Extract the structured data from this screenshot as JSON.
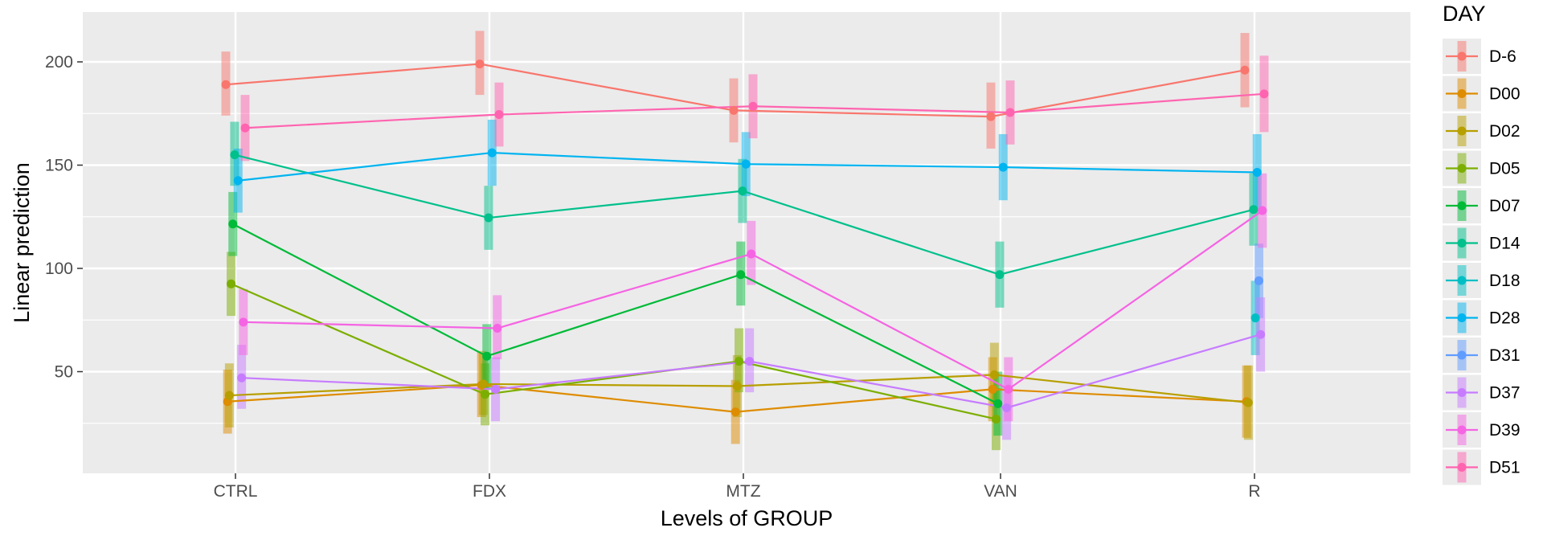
{
  "chart_data": {
    "type": "line",
    "xlabel": "Levels of GROUP",
    "ylabel": "Linear prediction",
    "categories": [
      "CTRL",
      "FDX",
      "MTZ",
      "VAN",
      "R"
    ],
    "yticks": [
      50,
      100,
      150,
      200
    ],
    "ylim": [
      0,
      225
    ],
    "grid": true,
    "legend": {
      "title": "DAY",
      "position": "right"
    },
    "series": [
      {
        "name": "D-6",
        "color": "#F8766D",
        "values": [
          189,
          199,
          176.5,
          173.5,
          196
        ],
        "ci_low": [
          174,
          184,
          161,
          158,
          178
        ],
        "ci_high": [
          205,
          215,
          192,
          190,
          214
        ]
      },
      {
        "name": "D00",
        "color": "#DE8C00",
        "values": [
          35.5,
          43.5,
          30.5,
          41.5,
          35.5
        ],
        "ci_low": [
          20,
          28,
          15,
          26,
          18
        ],
        "ci_high": [
          51,
          60,
          46,
          57,
          53
        ]
      },
      {
        "name": "D02",
        "color": "#B79F00",
        "values": [
          38.5,
          44,
          43,
          48.5,
          35
        ],
        "ci_low": [
          23,
          29,
          28,
          33,
          17
        ],
        "ci_high": [
          54,
          59,
          58,
          64,
          53
        ]
      },
      {
        "name": "D05",
        "color": "#7CAE00",
        "values": [
          92.5,
          39,
          55,
          27,
          null
        ],
        "ci_low": [
          77,
          24,
          40,
          12,
          null
        ],
        "ci_high": [
          108,
          54,
          71,
          42,
          null
        ]
      },
      {
        "name": "D07",
        "color": "#00BA38",
        "values": [
          121.5,
          57.5,
          97,
          34.5,
          null
        ],
        "ci_low": [
          106,
          42,
          82,
          19,
          null
        ],
        "ci_high": [
          137,
          73,
          113,
          50,
          null
        ]
      },
      {
        "name": "D14",
        "color": "#00C08B",
        "values": [
          155,
          124.5,
          137.5,
          97,
          128.5
        ],
        "ci_low": [
          140,
          109,
          122,
          81,
          111
        ],
        "ci_high": [
          171,
          140,
          153,
          113,
          146
        ]
      },
      {
        "name": "D18",
        "color": "#00BFC4",
        "values": [
          null,
          null,
          null,
          null,
          76
        ],
        "ci_low": [
          null,
          null,
          null,
          null,
          58
        ],
        "ci_high": [
          null,
          null,
          null,
          null,
          94
        ]
      },
      {
        "name": "D28",
        "color": "#00B4F0",
        "values": [
          142.5,
          156,
          150.5,
          149,
          146.5
        ],
        "ci_low": [
          127,
          140,
          135,
          133,
          129
        ],
        "ci_high": [
          158,
          172,
          166,
          165,
          165
        ]
      },
      {
        "name": "D31",
        "color": "#619CFF",
        "values": [
          null,
          null,
          null,
          null,
          94
        ],
        "ci_low": [
          null,
          null,
          null,
          null,
          76
        ],
        "ci_high": [
          null,
          null,
          null,
          null,
          112
        ]
      },
      {
        "name": "D37",
        "color": "#C77CFF",
        "values": [
          47,
          41.5,
          55,
          32.5,
          68
        ],
        "ci_low": [
          32,
          26,
          40,
          17,
          50
        ],
        "ci_high": [
          63,
          57,
          71,
          48,
          86
        ]
      },
      {
        "name": "D39",
        "color": "#F564E3",
        "values": [
          74,
          71,
          107,
          41.5,
          128
        ],
        "ci_low": [
          58,
          56,
          92,
          26,
          110
        ],
        "ci_high": [
          90,
          87,
          123,
          57,
          146
        ]
      },
      {
        "name": "D51",
        "color": "#FF64B0",
        "values": [
          168,
          174.5,
          178.5,
          175.5,
          184.5
        ],
        "ci_low": [
          152,
          159,
          163,
          160,
          166
        ],
        "ci_high": [
          184,
          190,
          194,
          191,
          203
        ]
      }
    ]
  }
}
